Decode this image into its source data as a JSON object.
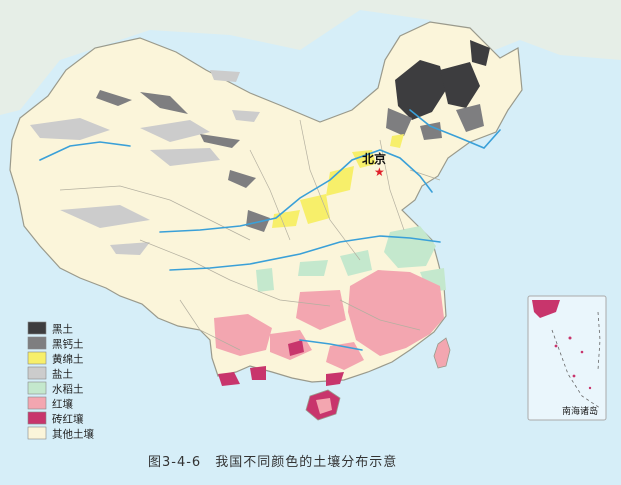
{
  "colors": {
    "sea": "#d6eef8",
    "land": "#fbf5da",
    "border": "#9a9a8c",
    "river": "#3aa0d8",
    "legend_stroke": "#888888"
  },
  "capital": {
    "label": "北京",
    "symbol": "★",
    "color": "#e0202a"
  },
  "legend": {
    "items": [
      {
        "label": "黑土",
        "color": "#3d3d3f"
      },
      {
        "label": "黑钙土",
        "color": "#7e7e80"
      },
      {
        "label": "黄绵土",
        "color": "#f7ef6a"
      },
      {
        "label": "盐土",
        "color": "#cccccc"
      },
      {
        "label": "水稻土",
        "color": "#c4e8cd"
      },
      {
        "label": "红壤",
        "color": "#f3a6b0"
      },
      {
        "label": "砖红壤",
        "color": "#c8356c"
      },
      {
        "label": "其他土壤",
        "color": "#fbf5da"
      }
    ]
  },
  "inset": {
    "label": "南海诸岛"
  },
  "caption": "图3-4-6　我国不同颜色的土壤分布示意"
}
